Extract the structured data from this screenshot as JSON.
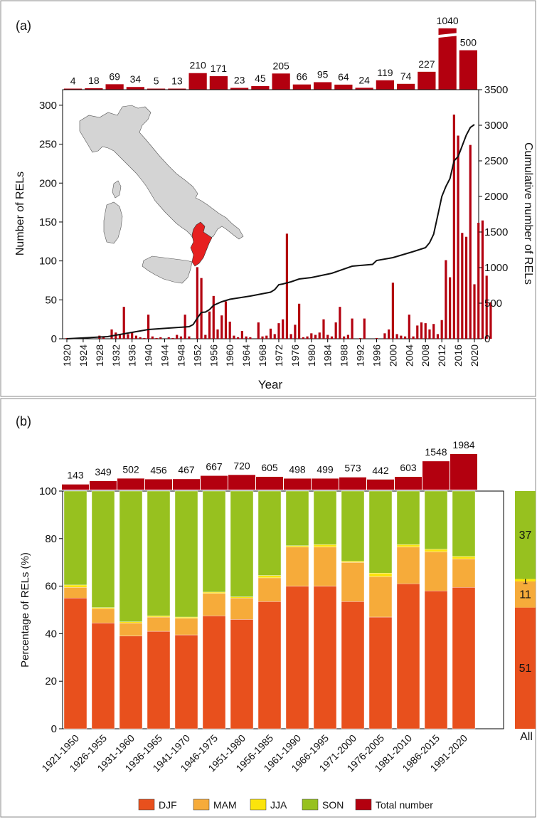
{
  "chart_data": [
    {
      "panel_label": "(a)",
      "type": "bar",
      "xlabel": "Year",
      "ylabel": "Number of RELs",
      "y2label": "Cumulative number of RELs",
      "ylim": [
        0,
        320
      ],
      "y2lim": [
        0,
        3500
      ],
      "yticks": [
        0,
        50,
        100,
        150,
        200,
        250,
        300
      ],
      "y2ticks": [
        0,
        500,
        1000,
        1500,
        2000,
        2500,
        3000,
        3500
      ],
      "xticks": [
        "1920",
        "1924",
        "1928",
        "1932",
        "1936",
        "1940",
        "1944",
        "1948",
        "1952",
        "1956",
        "1960",
        "1964",
        "1968",
        "1972",
        "1976",
        "1980",
        "1984",
        "1988",
        "1992",
        "1996",
        "2000",
        "2004",
        "2008",
        "2012",
        "2016",
        "2020"
      ],
      "grid": false,
      "annual": {
        "years_start": 1920,
        "years_end": 2020,
        "values": [
          1,
          0,
          1,
          0,
          0,
          0,
          0,
          0,
          4,
          2,
          0,
          12,
          8,
          5,
          41,
          6,
          8,
          4,
          2,
          1,
          31,
          3,
          1,
          2,
          0,
          2,
          1,
          5,
          3,
          31,
          3,
          0,
          92,
          78,
          5,
          35,
          55,
          12,
          30,
          48,
          22,
          4,
          2,
          10,
          3,
          2,
          0,
          21,
          3,
          4,
          13,
          6,
          20,
          25,
          135,
          6,
          18,
          45,
          2,
          3,
          7,
          5,
          8,
          25,
          5,
          3,
          21,
          41,
          3,
          5,
          26,
          0,
          1,
          26,
          0,
          0,
          1,
          0,
          7,
          12,
          72,
          6,
          4,
          3,
          31,
          3,
          17,
          21,
          20,
          12,
          19,
          6,
          24,
          101,
          79,
          288,
          261,
          136,
          131,
          249,
          70,
          149,
          152,
          81,
          47
        ]
      },
      "cumulative": {
        "x": [
          1920,
          1930,
          1940,
          1950,
          1951,
          1952,
          1953,
          1954,
          1955,
          1956,
          1958,
          1960,
          1965,
          1970,
          1971,
          1972,
          1973,
          1975,
          1977,
          1980,
          1985,
          1990,
          1995,
          1996,
          2000,
          2005,
          2008,
          2009,
          2010,
          2011,
          2012,
          2013,
          2014,
          2015,
          2016,
          2017,
          2018,
          2019,
          2020
        ],
        "y": [
          0,
          30,
          130,
          170,
          200,
          290,
          370,
          375,
          410,
          470,
          520,
          555,
          600,
          655,
          690,
          760,
          770,
          800,
          840,
          860,
          920,
          1020,
          1045,
          1100,
          1140,
          1225,
          1280,
          1350,
          1470,
          1730,
          2000,
          2140,
          2250,
          2500,
          2560,
          2710,
          2860,
          2970,
          3010
        ]
      },
      "period_totals": {
        "values": [
          4,
          18,
          69,
          34,
          5,
          13,
          210,
          171,
          23,
          45,
          205,
          66,
          95,
          64,
          24,
          119,
          74,
          227,
          1040,
          500
        ],
        "labels": [
          "4",
          "18",
          "69",
          "34",
          "5",
          "13",
          "210",
          "171",
          "23",
          "45",
          "205",
          "66",
          "95",
          "64",
          "24",
          "119",
          "74",
          "227",
          "1040",
          "500"
        ]
      }
    },
    {
      "panel_label": "(b)",
      "type": "bar",
      "ylabel": "Percentage of RELs (%)",
      "ylim": [
        0,
        100
      ],
      "yticks": [
        0,
        20,
        40,
        60,
        80,
        100
      ],
      "categories": [
        "1921-1950",
        "1926-1955",
        "1931-1960",
        "1936-1965",
        "1941-1970",
        "1946-1975",
        "1951-1980",
        "1956-1985",
        "1961-1990",
        "1966-1995",
        "1971-2000",
        "1976-2005",
        "1981-2010",
        "1986-2015",
        "1991-2020"
      ],
      "series": [
        {
          "name": "DJF",
          "values": [
            55,
            44.5,
            39,
            41,
            39.5,
            47.5,
            46,
            53.5,
            60,
            60,
            53.5,
            47,
            61,
            58,
            59.5
          ]
        },
        {
          "name": "MAM",
          "values": [
            4.5,
            6,
            5.5,
            6,
            7,
            9.5,
            9,
            10,
            16.5,
            16.5,
            16.5,
            17,
            15.5,
            16.5,
            12
          ]
        },
        {
          "name": "JJA",
          "values": [
            1,
            0.5,
            0.5,
            0.5,
            0.5,
            0.5,
            0.5,
            1,
            0.5,
            1,
            0.5,
            1.5,
            1,
            1,
            1
          ]
        },
        {
          "name": "SON",
          "values": [
            39.5,
            49,
            55,
            52.5,
            53,
            42.5,
            44.5,
            35.5,
            23,
            22.5,
            29.5,
            34.5,
            22.5,
            24.5,
            27.5
          ]
        }
      ],
      "totals": {
        "name": "Total number",
        "values": [
          143,
          349,
          502,
          456,
          467,
          667,
          720,
          605,
          498,
          499,
          573,
          442,
          603,
          1548,
          1984
        ],
        "labels": [
          "143",
          "349",
          "502",
          "456",
          "467",
          "667",
          "720",
          "605",
          "498",
          "499",
          "573",
          "442",
          "603",
          "1548",
          "1984"
        ]
      },
      "all": {
        "label": "All",
        "values": [
          51,
          11,
          1,
          37
        ],
        "labels": [
          "51",
          "11",
          "1",
          "37"
        ]
      },
      "legend": [
        "DJF",
        "MAM",
        "JJA",
        "SON",
        "Total number"
      ],
      "legend_position": "bottom"
    }
  ],
  "colors": {
    "total": "#b3000f",
    "cumulative_line": "#111111",
    "DJF": "#e8501d",
    "MAM": "#f6ab3a",
    "JJA": "#fbe40c",
    "SON": "#97c11f",
    "map_fill": "#d4d4d4",
    "map_highlight": "#e62020"
  }
}
